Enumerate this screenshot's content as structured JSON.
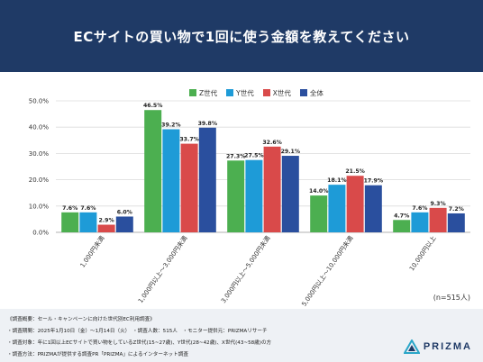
{
  "header": {
    "title": "ECサイトの買い物で1回に使う金額を教えてください"
  },
  "colors": {
    "header_bg": "#1f3a66",
    "series": [
      "#4caf50",
      "#1e9bd7",
      "#d94a4a",
      "#2a4f9e"
    ]
  },
  "chart_data": {
    "type": "bar",
    "categories": [
      "1,000円未満",
      "1,000円以上～3,000円未満",
      "3,000円以上～5,000円未満",
      "5,000円以上～10,000円未満",
      "10,000円以上"
    ],
    "series": [
      {
        "name": "Z世代",
        "values": [
          7.6,
          46.5,
          27.3,
          14.0,
          4.7
        ]
      },
      {
        "name": "Y世代",
        "values": [
          7.6,
          39.2,
          27.5,
          18.1,
          7.6
        ]
      },
      {
        "name": "X世代",
        "values": [
          2.9,
          33.7,
          32.6,
          21.5,
          9.3
        ]
      },
      {
        "name": "全体",
        "values": [
          6.0,
          39.8,
          29.1,
          17.9,
          7.2
        ]
      }
    ],
    "ylim": [
      0,
      50
    ],
    "yticks": [
      "0.0%",
      "10.0%",
      "20.0%",
      "30.0%",
      "40.0%",
      "50.0%"
    ],
    "value_suffix": "%",
    "grid": true,
    "legend": "top-center"
  },
  "note": "(n=515人)",
  "survey": {
    "lines": [
      "《調査概要：セール・キャンペーンに向けた世代別EC利用調査》",
      "・調査期間：2025年1月10日（金）～1月14日（火）　・調査人数：515人　・モニター提供元：PRIZMAリサーチ",
      "・調査対象：年に1回以上ECサイトで買い物をしているZ世代(15~27歳)、Y世代(28~42歳)、X世代(43~58歳)の方",
      "・調査方法：PRIZMAが提供する調査PR「PRIZMA」によるインターネット調査"
    ]
  },
  "logo": {
    "text": "PRIZMA",
    "icon": "prizma-logo-icon"
  }
}
